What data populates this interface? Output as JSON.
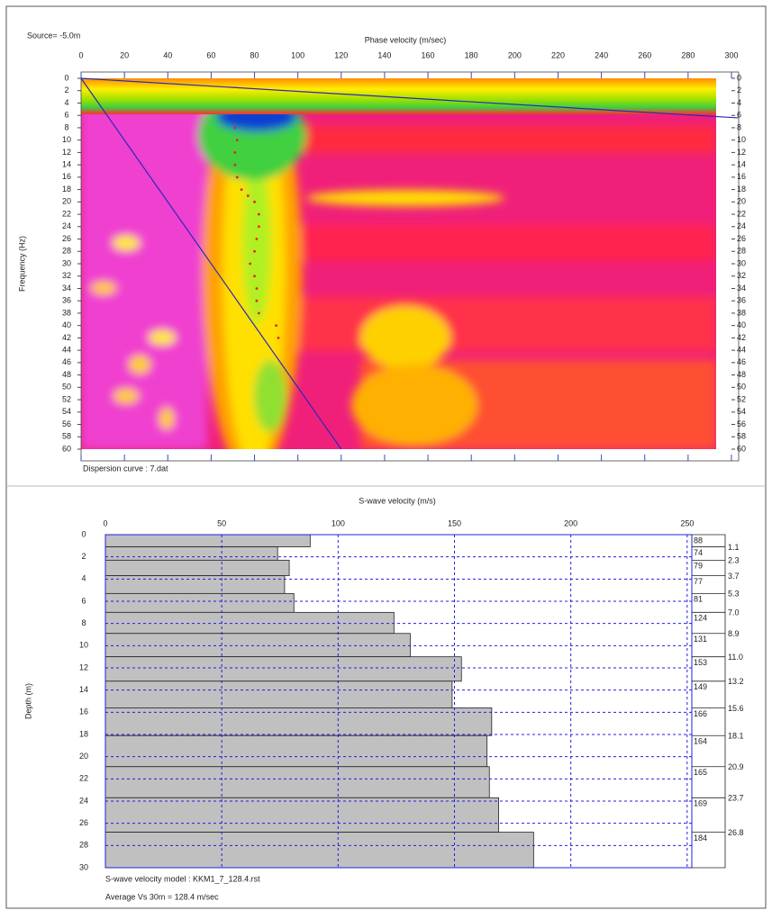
{
  "chart_data": [
    {
      "type": "dispersion",
      "title": "Source= -5.0m",
      "xlabel": "Phase velocity (m/sec)",
      "ylabel": "Frequency (Hz)",
      "note": "Dispersion curve : 7.dat",
      "xlim": [
        0,
        300
      ],
      "ylim": [
        0,
        60
      ],
      "y_inverted": true,
      "xticks": [
        0,
        20,
        40,
        60,
        80,
        100,
        120,
        140,
        160,
        180,
        200,
        220,
        240,
        260,
        280,
        300
      ],
      "yticks": [
        0,
        2,
        4,
        6,
        8,
        10,
        12,
        14,
        16,
        18,
        20,
        22,
        24,
        26,
        28,
        30,
        32,
        34,
        36,
        38,
        40,
        42,
        44,
        46,
        48,
        50,
        52,
        54,
        56,
        58,
        60
      ],
      "points": {
        "color": "#e8202a",
        "x": [
          71,
          72,
          71,
          71,
          72,
          74,
          77,
          80,
          82,
          82,
          81,
          80,
          78,
          80,
          81,
          81,
          82,
          90,
          91
        ],
        "y": [
          8,
          10,
          12,
          14,
          16,
          18,
          19,
          20,
          22,
          24,
          26,
          28,
          30,
          32,
          34,
          36,
          38,
          40,
          42
        ]
      },
      "lines": [
        {
          "color": "#2a2ab8",
          "x": [
            0,
            303
          ],
          "y": [
            0,
            6.4
          ]
        },
        {
          "color": "#2a2ab8",
          "x": [
            0,
            120
          ],
          "y": [
            0,
            60
          ]
        }
      ]
    },
    {
      "type": "step-profile",
      "xlabel": "S-wave velocity (m/s)",
      "ylabel": "Depth (m)",
      "notes": [
        "S-wave velocity model : KKM1_7_128.4.rst",
        "Average Vs 30m = 128.4 m/sec"
      ],
      "xlim": [
        0,
        252
      ],
      "ylim": [
        0,
        30
      ],
      "y_inverted": true,
      "grid": true,
      "color": "#c0c0c0",
      "xticks": [
        0,
        50,
        100,
        150,
        200,
        250
      ],
      "yticks": [
        0,
        2,
        4,
        6,
        8,
        10,
        12,
        14,
        16,
        18,
        20,
        22,
        24,
        26,
        28,
        30
      ],
      "values": [
        88,
        74,
        79,
        77,
        81,
        124,
        131,
        153,
        149,
        166,
        164,
        165,
        169,
        184
      ],
      "depths": [
        1.1,
        2.3,
        3.7,
        5.3,
        7,
        8.9,
        11,
        13.2,
        15.6,
        18.1,
        20.9,
        23.7,
        26.8
      ],
      "depth_labels": [
        "1.1",
        "2.3",
        "3.7",
        "5.3",
        "7.0",
        "8.9",
        "11.0",
        "13.2",
        "15.6",
        "18.1",
        "20.9",
        "23.7",
        "26.8"
      ]
    }
  ]
}
